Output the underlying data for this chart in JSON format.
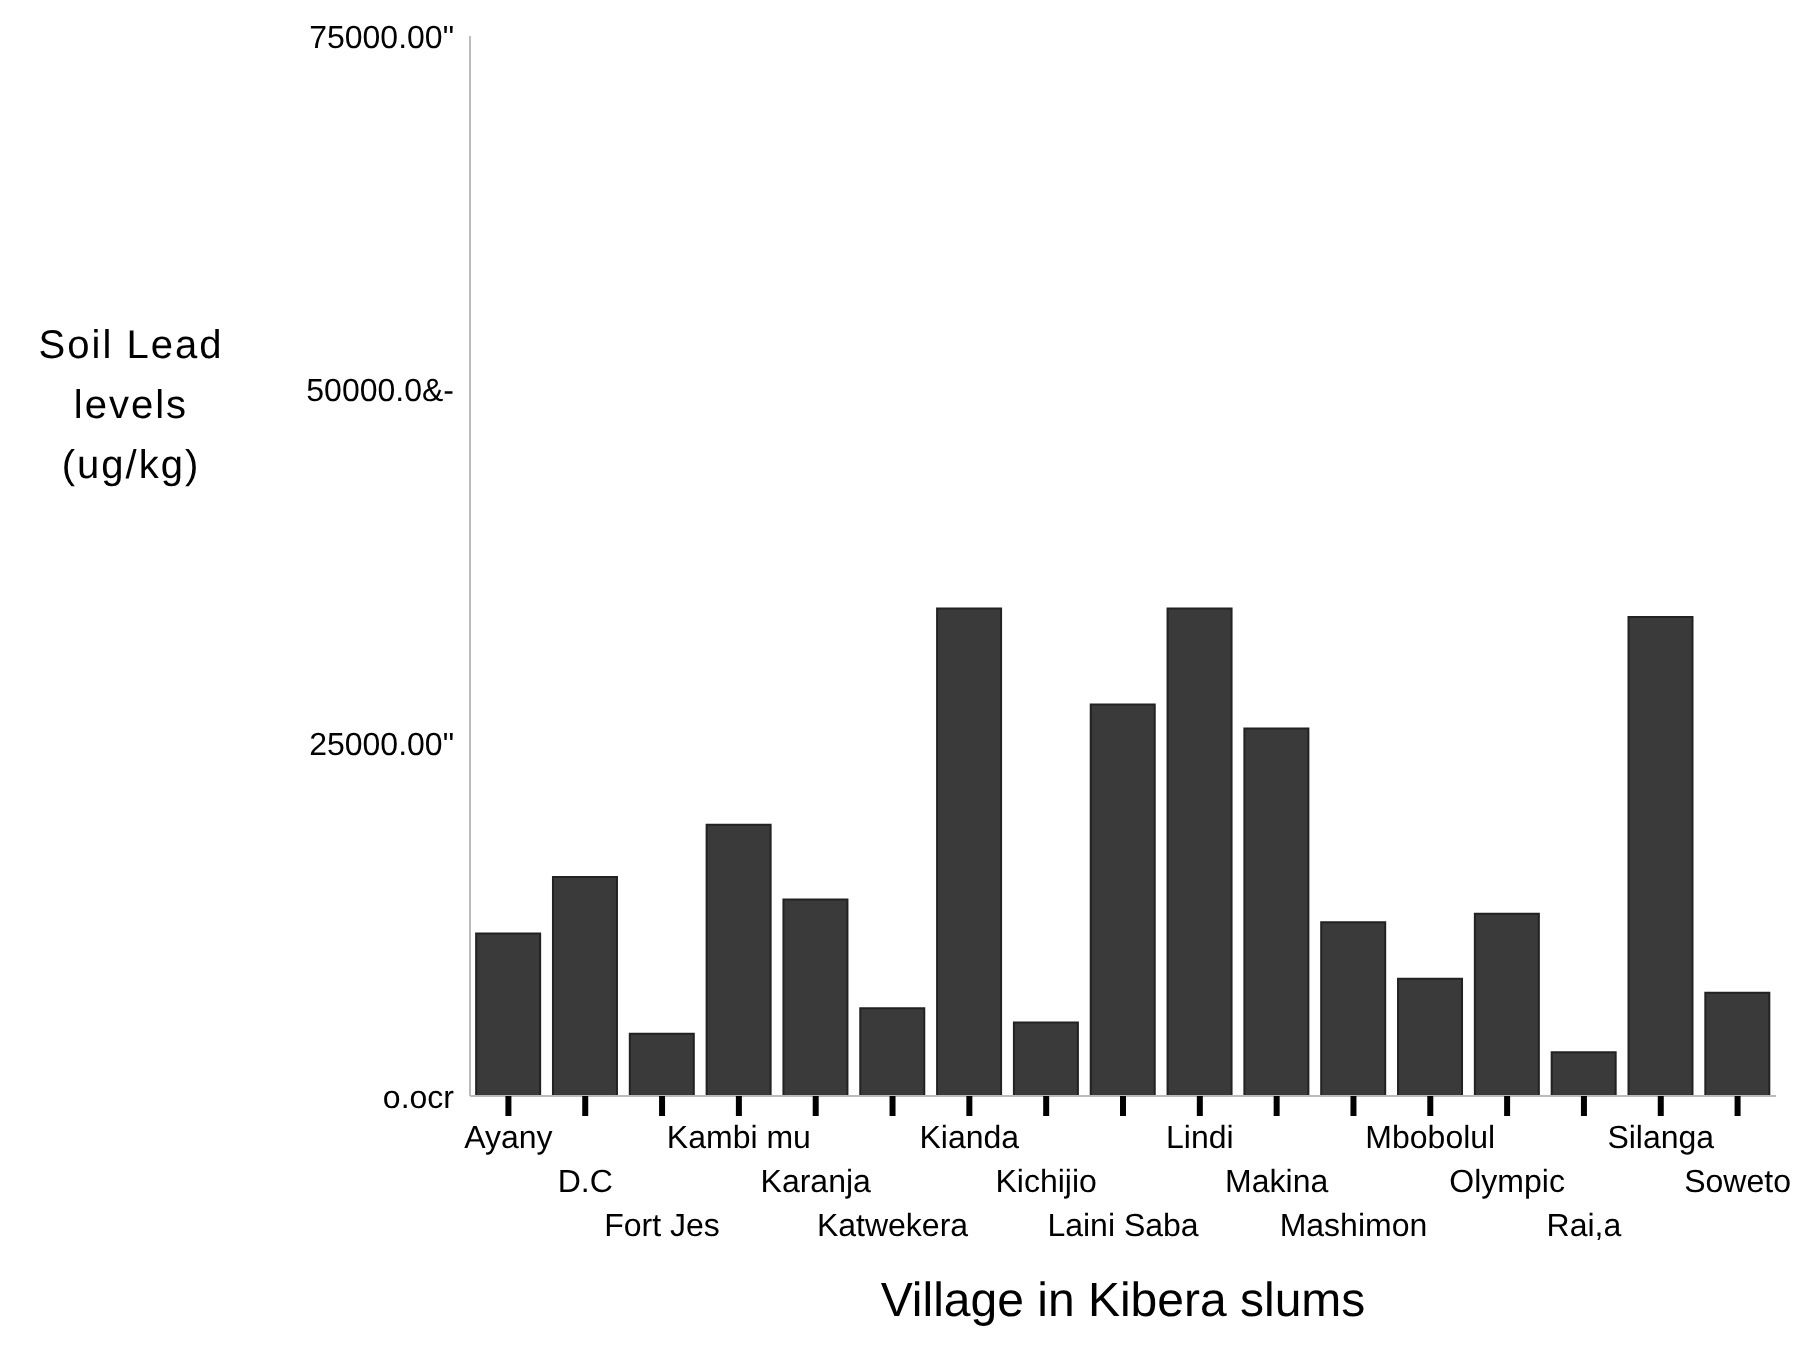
{
  "chart_data": {
    "type": "bar",
    "xlabel": "Village in Kibera slums",
    "ylabel": "Soil Lead levels (ug/kg)",
    "categories": [
      "Ayany",
      "D.C",
      "Fort Jes",
      "Kambi mu",
      "Karanja",
      "Katwekera",
      "Kianda",
      "Kichijio",
      "Laini Saba",
      "Lindi",
      "Makina",
      "Mashimon",
      "Mbobolul",
      "Olympic",
      "Rai,a",
      "Silanga",
      "Soweto"
    ],
    "values": [
      11500,
      15500,
      4400,
      19200,
      13900,
      6200,
      34500,
      5200,
      27700,
      34500,
      26000,
      12300,
      8300,
      12900,
      3100,
      33900,
      7300
    ],
    "color": "#3a3a3a",
    "ylim": [
      0,
      75000
    ],
    "yticks": [
      {
        "value": 0,
        "label": "o.ocr"
      },
      {
        "value": 25000,
        "label": "25000.00\""
      },
      {
        "value": 50000,
        "label": "50000.0&-"
      },
      {
        "value": 75000,
        "label": "75000.00\""
      }
    ],
    "grid": false,
    "legend": false
  }
}
